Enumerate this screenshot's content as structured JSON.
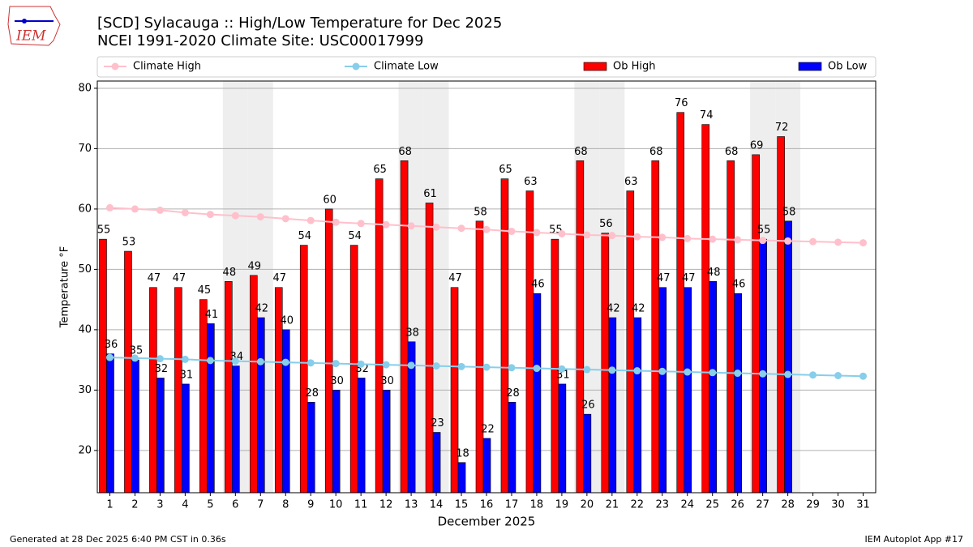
{
  "chart_data": {
    "type": "bar",
    "title": "[SCD] Sylacauga :: High/Low Temperature for Dec 2025",
    "subtitle": "NCEI 1991-2020 Climate Site: USC00017999",
    "logo": "IEM",
    "xlabel": "December 2025",
    "ylabel": "Temperature °F",
    "footer_left": "Generated at 28 Dec 2025 6:40 PM CST in 0.36s",
    "footer_right": "IEM Autoplot App #17",
    "x": [
      1,
      2,
      3,
      4,
      5,
      6,
      7,
      8,
      9,
      10,
      11,
      12,
      13,
      14,
      15,
      16,
      17,
      18,
      19,
      20,
      21,
      22,
      23,
      24,
      25,
      26,
      27,
      28,
      29,
      30,
      31
    ],
    "xlim": [
      0.5,
      31.5
    ],
    "ylim": [
      13,
      81.2
    ],
    "yticks": [
      20,
      30,
      40,
      50,
      60,
      70,
      80
    ],
    "grid": true,
    "legend": "top",
    "shaded_days": [
      6,
      7,
      13,
      14,
      20,
      21,
      27,
      28
    ],
    "shade_color": "#eeeeee",
    "series": [
      {
        "name": "Climate High",
        "type": "line",
        "color": "#ffc0cb",
        "values": [
          60.2,
          60.0,
          59.8,
          59.4,
          59.1,
          58.9,
          58.7,
          58.4,
          58.1,
          57.8,
          57.6,
          57.4,
          57.2,
          57.0,
          56.8,
          56.6,
          56.3,
          56.1,
          55.9,
          55.7,
          55.6,
          55.4,
          55.3,
          55.1,
          55.0,
          54.9,
          54.8,
          54.7,
          54.6,
          54.5,
          54.4
        ]
      },
      {
        "name": "Climate Low",
        "type": "line",
        "color": "#87ceeb",
        "values": [
          35.4,
          35.3,
          35.2,
          35.1,
          34.9,
          34.8,
          34.7,
          34.6,
          34.5,
          34.4,
          34.3,
          34.2,
          34.1,
          34.0,
          33.9,
          33.8,
          33.7,
          33.6,
          33.5,
          33.4,
          33.3,
          33.2,
          33.1,
          33.0,
          32.9,
          32.8,
          32.7,
          32.6,
          32.5,
          32.4,
          32.3
        ]
      },
      {
        "name": "Ob High",
        "type": "bar",
        "color": "#ff0000",
        "values": [
          55,
          53,
          47,
          47,
          45,
          48,
          49,
          47,
          54,
          60,
          54,
          65,
          68,
          61,
          47,
          58,
          65,
          63,
          55,
          68,
          56,
          63,
          68,
          76,
          74,
          68,
          69,
          72,
          null,
          null,
          null
        ]
      },
      {
        "name": "Ob Low",
        "type": "bar",
        "color": "#0000ff",
        "values": [
          36,
          35,
          32,
          31,
          41,
          34,
          42,
          40,
          28,
          30,
          32,
          30,
          38,
          23,
          18,
          22,
          28,
          46,
          31,
          26,
          42,
          42,
          47,
          47,
          48,
          46,
          55,
          58,
          null,
          null,
          null
        ]
      }
    ]
  }
}
